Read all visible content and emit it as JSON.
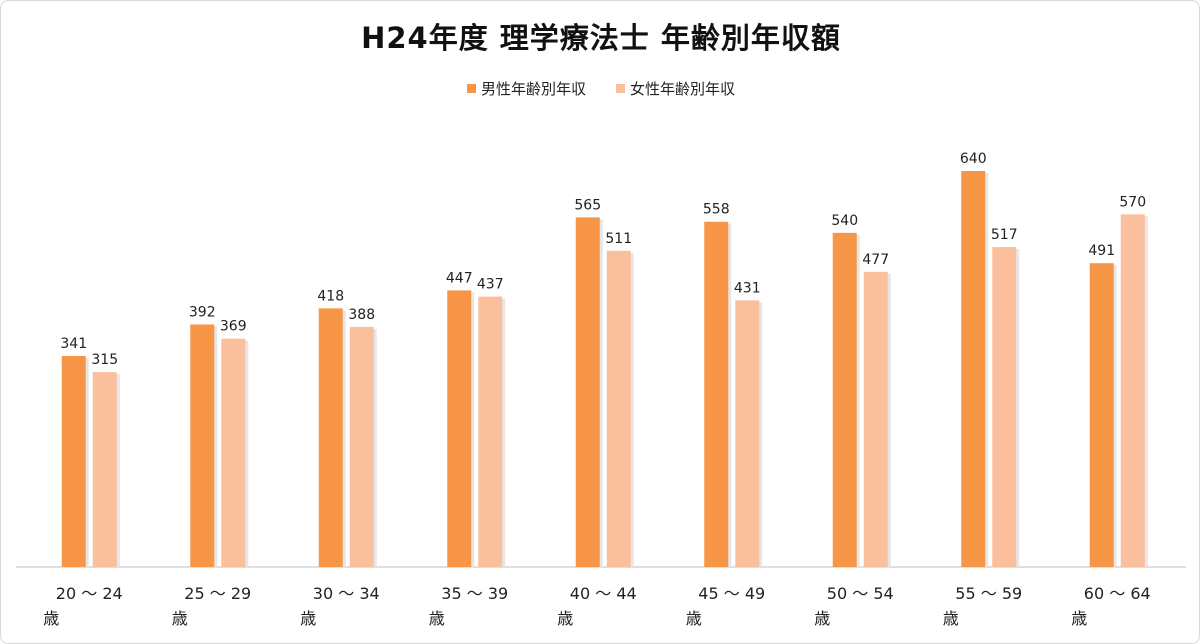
{
  "chart_data": {
    "type": "bar",
    "title": "H24年度 理学療法士 年齢別年収額",
    "xlabel": "",
    "ylabel": "",
    "categories": [
      {
        "line1": "20 ～ 24",
        "line2": "歳"
      },
      {
        "line1": "25 ～ 29",
        "line2": "歳"
      },
      {
        "line1": "30 ～ 34",
        "line2": "歳"
      },
      {
        "line1": "35 ～ 39",
        "line2": "歳"
      },
      {
        "line1": "40 ～ 44",
        "line2": "歳"
      },
      {
        "line1": "45 ～ 49",
        "line2": "歳"
      },
      {
        "line1": "50 ～ 54",
        "line2": "歳"
      },
      {
        "line1": "55 ～ 59",
        "line2": "歳"
      },
      {
        "line1": "60 ～ 64",
        "line2": "歳"
      }
    ],
    "series": [
      {
        "name": "男性年齢別年収",
        "color": "#f79646",
        "values": [
          341,
          392,
          418,
          447,
          565,
          558,
          540,
          640,
          491
        ]
      },
      {
        "name": "女性年齢別年収",
        "color": "#fac09e",
        "values": [
          315,
          369,
          388,
          437,
          511,
          431,
          477,
          517,
          570
        ]
      }
    ],
    "ylim": [
      0,
      640
    ],
    "grid": false,
    "legend": "top-center",
    "data_labels": true
  }
}
